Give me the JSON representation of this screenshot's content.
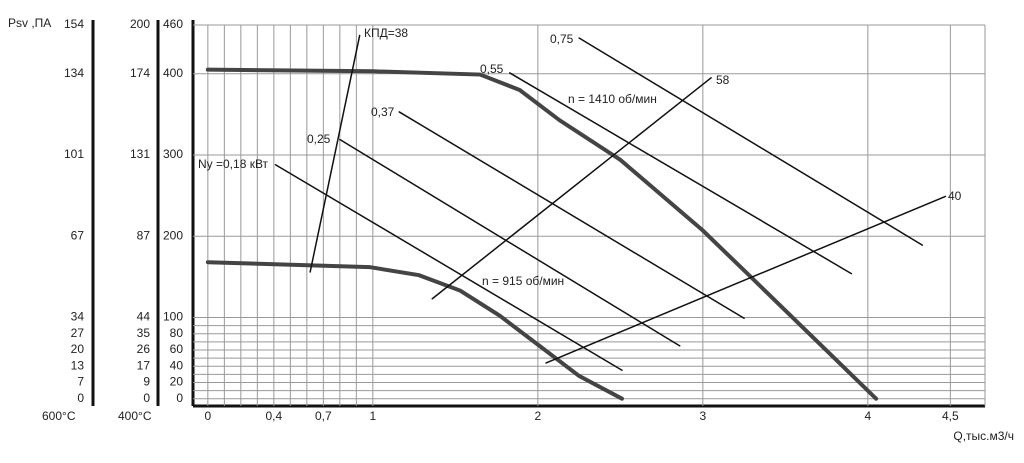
{
  "chart_data": {
    "type": "line",
    "x_label": "Q,тыс.м3/ч",
    "xlim": [
      -0.09,
      4.71
    ],
    "xticks": [
      0,
      {
        "value": 0.4,
        "label": "0,4"
      },
      {
        "value": 0.7,
        "label": "0,7"
      },
      1,
      2,
      3,
      4,
      {
        "value": 4.5,
        "label": "4,5"
      }
    ],
    "xgrid": [
      0,
      0.1,
      0.2,
      0.3,
      0.4,
      0.5,
      0.6,
      0.7,
      0.8,
      0.9,
      1,
      2,
      3,
      4,
      4.5
    ],
    "ylim": [
      -9,
      460
    ],
    "yticks": [
      0,
      20,
      40,
      60,
      80,
      100,
      200,
      300,
      400,
      460
    ],
    "ygrid": [
      0,
      10,
      20,
      30,
      40,
      50,
      60,
      70,
      80,
      90,
      100,
      200,
      300,
      400,
      460
    ],
    "y_scales": [
      {
        "title": "Psv ,ПА",
        "temperature": "600°C",
        "ticks": [
          0,
          7,
          13,
          20,
          27,
          34,
          67,
          101,
          134,
          154
        ]
      },
      {
        "temperature": "400°C",
        "ticks": [
          0,
          9,
          17,
          26,
          35,
          44,
          87,
          131,
          174,
          200
        ]
      }
    ],
    "series": [
      {
        "name": "n = 1410 об/мин",
        "color": "#444444",
        "x": [
          0,
          1,
          1.65,
          1.89,
          2.13,
          2.5,
          3,
          3.28,
          4.05
        ],
        "values": [
          405,
          403,
          399,
          380,
          343,
          294,
          207,
          152,
          0
        ]
      },
      {
        "name": "n = 915 об/мин",
        "color": "#444444",
        "x": [
          0,
          0.98,
          1.28,
          1.53,
          1.77,
          2.01,
          2.25,
          2.51
        ],
        "values": [
          168,
          162,
          152,
          133,
          102,
          65,
          28,
          0
        ]
      },
      {
        "name": "Ny =0,18 кВт",
        "color": "#111111",
        "x": [
          0.41,
          2.51
        ],
        "values": [
          288,
          35
        ]
      },
      {
        "name": "0,25",
        "color": "#111111",
        "x": [
          0.8,
          2.86
        ],
        "values": [
          319,
          65
        ]
      },
      {
        "name": "0,37",
        "color": "#111111",
        "x": [
          1.16,
          3.25
        ],
        "values": [
          353,
          99
        ]
      },
      {
        "name": "0,55",
        "color": "#111111",
        "x": [
          1.83,
          3.9
        ],
        "values": [
          401,
          154
        ]
      },
      {
        "name": "0,75",
        "color": "#111111",
        "x": [
          2.25,
          4.33
        ],
        "values": [
          444,
          189
        ]
      },
      {
        "name": "КПД=38",
        "color": "#111111",
        "x": [
          0.62,
          0.92
        ],
        "values": [
          156,
          447
        ]
      },
      {
        "name": "58",
        "color": "#111111",
        "x": [
          1.36,
          3.05
        ],
        "values": [
          123,
          395
        ]
      },
      {
        "name": "40",
        "color": "#111111",
        "x": [
          2.05,
          4.47
        ],
        "values": [
          44,
          249
        ]
      }
    ]
  }
}
